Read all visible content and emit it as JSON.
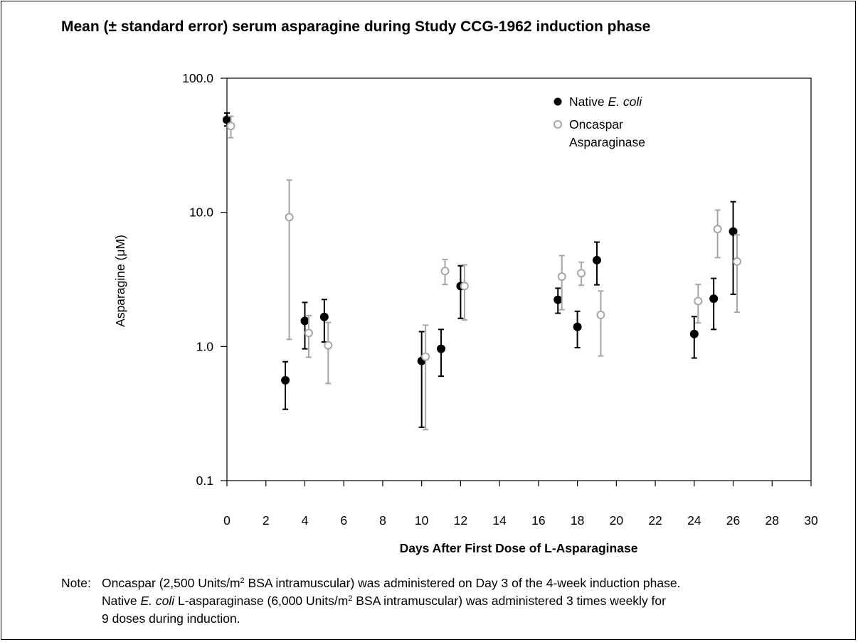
{
  "chart_data": {
    "type": "scatter",
    "title": "Mean (± standard error) serum asparagine during Study CCG-1962 induction phase",
    "xlabel": "Days After First Dose of L-Asparaginase",
    "ylabel": "Asparagine (μM)",
    "yscale": "log",
    "xlim": [
      0,
      30
    ],
    "ylim": [
      0.1,
      100
    ],
    "xticks": [
      0,
      2,
      4,
      6,
      8,
      10,
      12,
      14,
      16,
      18,
      20,
      22,
      24,
      26,
      28,
      30
    ],
    "xtick_labels": [
      "0",
      "2",
      "4",
      "6",
      "8",
      "10",
      "12",
      "14",
      "16",
      "18",
      "20",
      "22",
      "24",
      "26",
      "28",
      "30"
    ],
    "yticks": [
      0.1,
      1,
      10,
      100
    ],
    "ytick_labels": [
      "0.1",
      "1.0",
      "10.0",
      "100.0"
    ],
    "grid": false,
    "legend_position": "top-right",
    "series": [
      {
        "name_plain": "Native ",
        "name_italic": "E. coli",
        "color": "#000000",
        "marker": "filled-circle",
        "points": [
          {
            "x": 0,
            "y": 49,
            "lo": 44,
            "hi": 55
          },
          {
            "x": 3,
            "y": 0.56,
            "lo": 0.34,
            "hi": 0.77
          },
          {
            "x": 4,
            "y": 1.55,
            "lo": 0.96,
            "hi": 2.13
          },
          {
            "x": 5,
            "y": 1.66,
            "lo": 1.08,
            "hi": 2.24
          },
          {
            "x": 10,
            "y": 0.78,
            "lo": 0.25,
            "hi": 1.29
          },
          {
            "x": 11,
            "y": 0.96,
            "lo": 0.6,
            "hi": 1.34
          },
          {
            "x": 12,
            "y": 2.82,
            "lo": 1.62,
            "hi": 4.0
          },
          {
            "x": 17,
            "y": 2.23,
            "lo": 1.77,
            "hi": 2.72
          },
          {
            "x": 18,
            "y": 1.4,
            "lo": 0.98,
            "hi": 1.83
          },
          {
            "x": 19,
            "y": 4.4,
            "lo": 2.88,
            "hi": 6.0
          },
          {
            "x": 24,
            "y": 1.24,
            "lo": 0.82,
            "hi": 1.67
          },
          {
            "x": 25,
            "y": 2.27,
            "lo": 1.34,
            "hi": 3.22
          },
          {
            "x": 26,
            "y": 7.2,
            "lo": 2.45,
            "hi": 12.0
          }
        ]
      },
      {
        "name_line1": "Oncaspar",
        "name_line2": "Asparaginase",
        "color": "#a6a6a6",
        "marker": "open-circle",
        "points": [
          {
            "x": 0.2,
            "y": 44,
            "lo": 36,
            "hi": 52
          },
          {
            "x": 3.2,
            "y": 9.2,
            "lo": 1.13,
            "hi": 17.4
          },
          {
            "x": 4.2,
            "y": 1.26,
            "lo": 0.83,
            "hi": 1.7
          },
          {
            "x": 5.2,
            "y": 1.02,
            "lo": 0.53,
            "hi": 1.51
          },
          {
            "x": 10.2,
            "y": 0.84,
            "lo": 0.24,
            "hi": 1.44
          },
          {
            "x": 11.2,
            "y": 3.65,
            "lo": 2.9,
            "hi": 4.45
          },
          {
            "x": 12.2,
            "y": 2.82,
            "lo": 1.58,
            "hi": 4.06
          },
          {
            "x": 17.2,
            "y": 3.32,
            "lo": 1.88,
            "hi": 4.76
          },
          {
            "x": 18.2,
            "y": 3.52,
            "lo": 2.86,
            "hi": 4.25
          },
          {
            "x": 19.2,
            "y": 1.72,
            "lo": 0.85,
            "hi": 2.59
          },
          {
            "x": 24.2,
            "y": 2.18,
            "lo": 1.5,
            "hi": 2.9
          },
          {
            "x": 25.2,
            "y": 7.5,
            "lo": 4.6,
            "hi": 10.4
          },
          {
            "x": 26.2,
            "y": 4.3,
            "lo": 1.8,
            "hi": 6.8
          }
        ]
      }
    ]
  },
  "note": {
    "label": "Note:",
    "line1_a": "Oncaspar (2,500 Units/m",
    "line1_sup": "2",
    "line1_b": " BSA intramuscular) was administered on Day 3 of the 4-week induction phase.",
    "line2_a": "Native ",
    "line2_italic": "E. coli",
    "line2_b": " L-asparaginase (6,000 Units/m",
    "line2_sup": "2",
    "line2_c": " BSA intramuscular) was administered 3 times weekly for",
    "line3": "9 doses during induction."
  }
}
